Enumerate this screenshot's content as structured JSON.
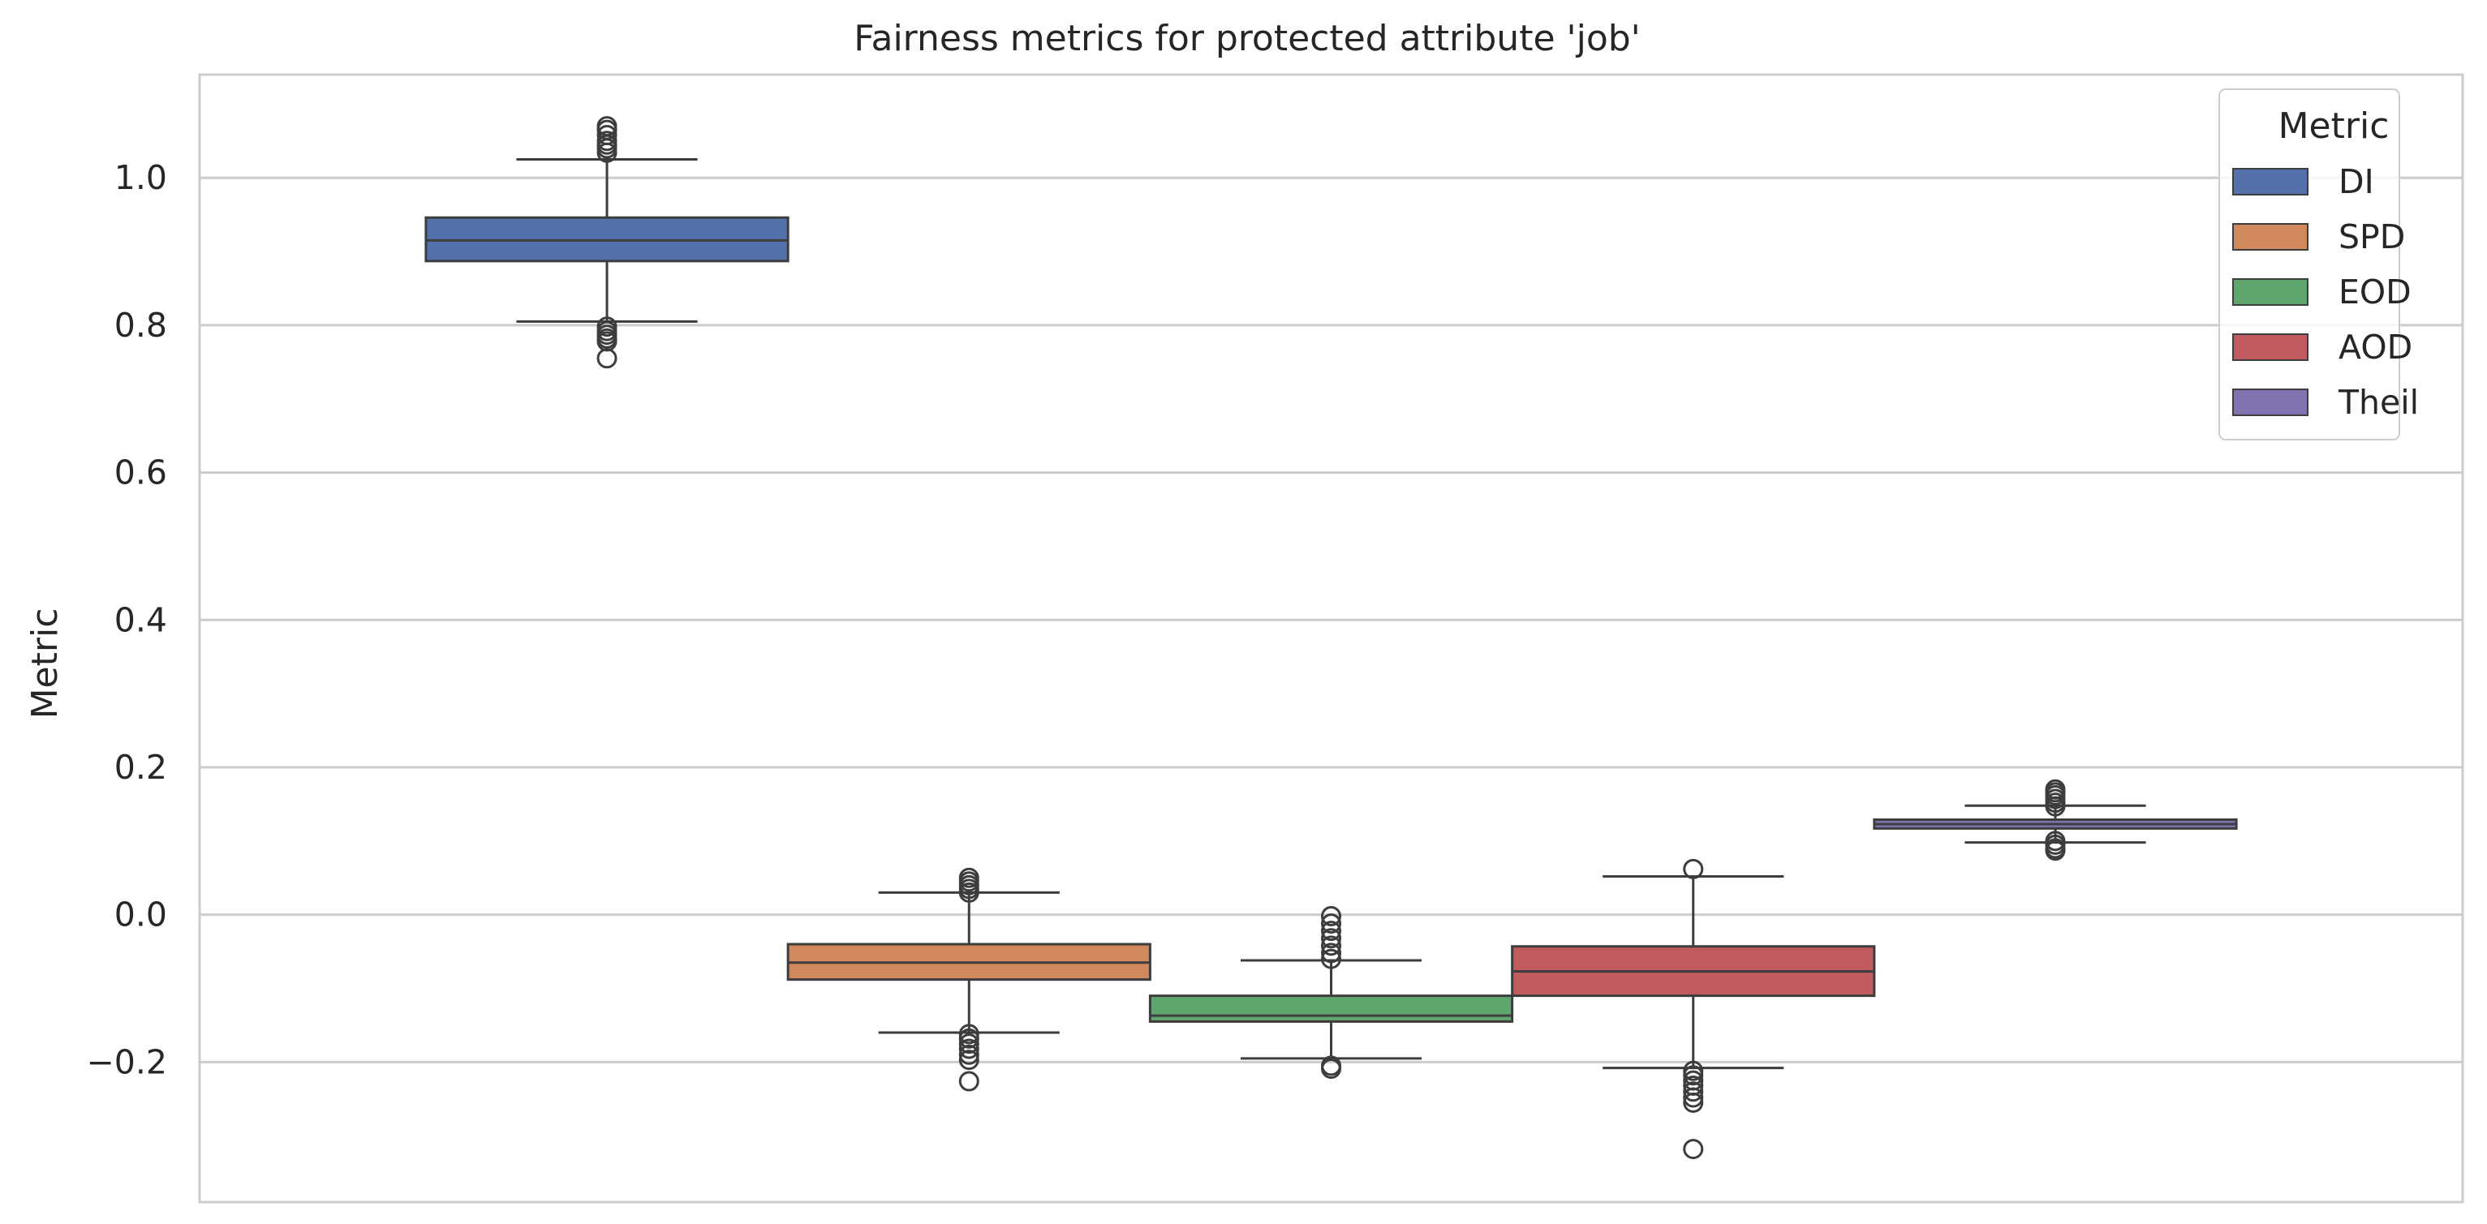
{
  "chart_data": {
    "type": "box",
    "title": "Fairness metrics for protected attribute 'job'",
    "xlabel": "",
    "ylabel": "Metric",
    "ylim": [
      -0.39,
      1.14
    ],
    "yticks": [
      -0.2,
      0.0,
      0.2,
      0.4,
      0.6,
      0.8,
      1.0
    ],
    "ytick_labels": [
      "−0.2",
      "0.0",
      "0.2",
      "0.4",
      "0.6",
      "0.8",
      "1.0"
    ],
    "grid": "horizontal",
    "legend": {
      "title": "Metric",
      "placement": "top-right"
    },
    "series": [
      {
        "name": "DI",
        "color": "#5471ab",
        "whisker_low": 0.805,
        "q1": 0.887,
        "median": 0.915,
        "q3": 0.946,
        "whisker_high": 1.025,
        "outliers": [
          1.07,
          1.065,
          1.058,
          1.05,
          1.045,
          1.04,
          1.034,
          0.798,
          0.792,
          0.787,
          0.782,
          0.778,
          0.755
        ]
      },
      {
        "name": "SPD",
        "color": "#d1885c",
        "whisker_low": -0.16,
        "q1": -0.088,
        "median": -0.065,
        "q3": -0.04,
        "whisker_high": 0.03,
        "outliers": [
          0.05,
          0.045,
          0.04,
          0.035,
          0.03,
          -0.162,
          -0.168,
          -0.175,
          -0.182,
          -0.19,
          -0.197,
          -0.226
        ]
      },
      {
        "name": "EOD",
        "color": "#5ea56e",
        "whisker_low": -0.195,
        "q1": -0.145,
        "median": -0.137,
        "q3": -0.11,
        "whisker_high": -0.062,
        "outliers": [
          -0.002,
          -0.012,
          -0.022,
          -0.032,
          -0.042,
          -0.052,
          -0.06,
          -0.205,
          -0.209
        ]
      },
      {
        "name": "AOD",
        "color": "#c05b5f",
        "whisker_low": -0.208,
        "q1": -0.11,
        "median": -0.077,
        "q3": -0.043,
        "whisker_high": 0.052,
        "outliers": [
          0.062,
          -0.212,
          -0.218,
          -0.225,
          -0.232,
          -0.24,
          -0.248,
          -0.255,
          -0.318
        ]
      },
      {
        "name": "Theil",
        "color": "#8173b0",
        "whisker_low": 0.098,
        "q1": 0.117,
        "median": 0.123,
        "q3": 0.129,
        "whisker_high": 0.148,
        "outliers": [
          0.17,
          0.166,
          0.162,
          0.157,
          0.152,
          0.147,
          0.1,
          0.095,
          0.09,
          0.087
        ]
      }
    ]
  }
}
